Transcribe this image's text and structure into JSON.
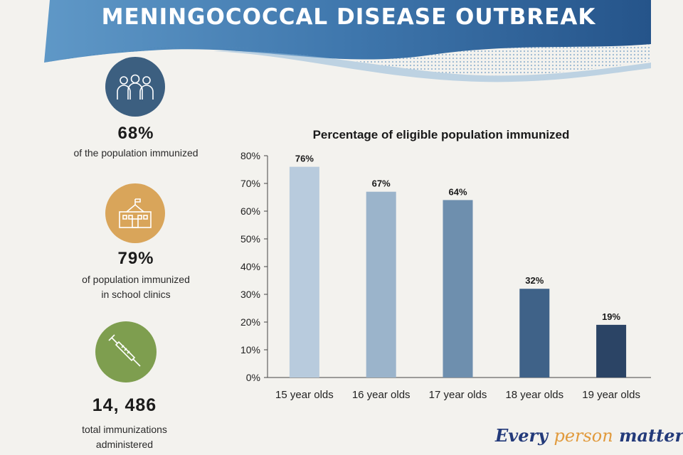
{
  "header": {
    "title": "MENINGOCOCCAL DISEASE OUTBREAK"
  },
  "stats": [
    {
      "icon": "people-group-icon",
      "color": "#3c5f80",
      "value": "68%",
      "caption_lines": [
        "of the population immunized"
      ]
    },
    {
      "icon": "school-building-icon",
      "color": "#d9a55a",
      "value": "79%",
      "caption_lines": [
        "of population immunized",
        "in school clinics"
      ]
    },
    {
      "icon": "syringe-icon",
      "color": "#7e9e4f",
      "value": "14, 486",
      "caption_lines": [
        "total immunizations",
        "administered"
      ]
    }
  ],
  "chart_data": {
    "type": "bar",
    "title": "Percentage of eligible population immunized",
    "categories": [
      "15 year olds",
      "16 year olds",
      "17 year olds",
      "18 year olds",
      "19 year olds"
    ],
    "values": [
      76,
      67,
      64,
      32,
      19
    ],
    "data_labels": [
      "76%",
      "67%",
      "64%",
      "32%",
      "19%"
    ],
    "bar_colors": [
      "#b8cbdd",
      "#9bb4cb",
      "#6e8fae",
      "#3f6288",
      "#2b4465"
    ],
    "ylim": [
      0,
      80
    ],
    "yticks": [
      0,
      10,
      20,
      30,
      40,
      50,
      60,
      70,
      80
    ],
    "ytick_labels": [
      "0%",
      "10%",
      "20%",
      "30%",
      "40%",
      "50%",
      "60%",
      "70%",
      "80%"
    ],
    "grid": false,
    "xlabel": "",
    "ylabel": ""
  },
  "footer": {
    "tagline_part1": "Every ",
    "tagline_part2": "person",
    "tagline_part3": " matters"
  }
}
